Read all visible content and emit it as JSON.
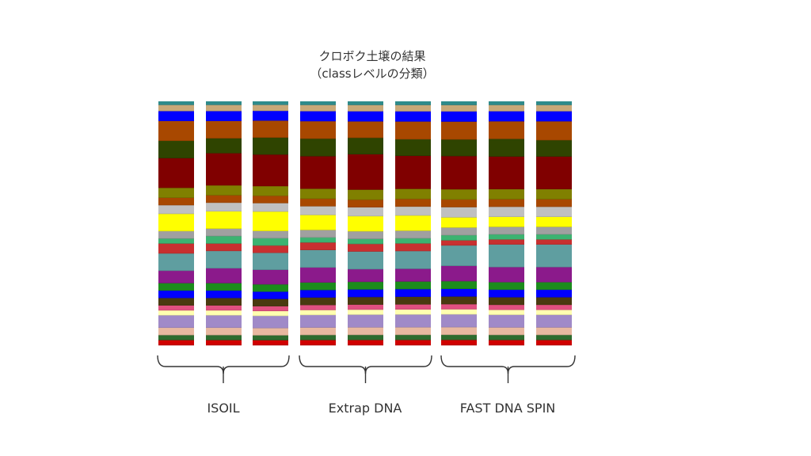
{
  "chart_data": {
    "type": "bar",
    "subtype": "stacked-100-percent",
    "title_lines": [
      "クロボク土壌の結果",
      "（classレベルの分類）"
    ],
    "groups": [
      {
        "label": "ISOIL",
        "bars": 3
      },
      {
        "label": "Extrap DNA",
        "bars": 3
      },
      {
        "label": "FAST DNA SPIN",
        "bars": 3
      }
    ],
    "ylim": [
      0,
      100
    ],
    "series": [
      {
        "color": "#2E8B8B",
        "values": [
          1.5,
          1.5,
          1.5,
          1.5,
          1.5,
          1.5,
          1.5,
          1.5,
          1.5
        ]
      },
      {
        "color": "#C8A878",
        "values": [
          2.5,
          2.5,
          2.5,
          2.5,
          2.5,
          2.5,
          2.5,
          2.5,
          2.5
        ]
      },
      {
        "color": "#0000FF",
        "values": [
          4,
          4,
          4,
          4,
          4,
          4,
          4,
          4,
          4
        ]
      },
      {
        "color": "#A84800",
        "values": [
          8,
          7,
          7,
          7,
          6.5,
          7,
          7,
          7,
          7.5
        ]
      },
      {
        "color": "#2F4400",
        "values": [
          7,
          6,
          7,
          7,
          6.5,
          6.5,
          6.5,
          7,
          6.5
        ]
      },
      {
        "color": "#800000",
        "values": [
          12,
          13,
          13,
          13,
          14,
          13,
          13,
          13,
          13
        ]
      },
      {
        "color": "#808000",
        "values": [
          4,
          4,
          4,
          4,
          4,
          4,
          4,
          4,
          4
        ]
      },
      {
        "color": "#A84800",
        "values": [
          3,
          3,
          3,
          3,
          3,
          3,
          3,
          3,
          3
        ]
      },
      {
        "color": "#C0C0C0",
        "values": [
          3.5,
          3.5,
          3.5,
          3.5,
          3.5,
          3.5,
          4,
          4,
          4
        ]
      },
      {
        "color": "#FFFF00",
        "values": [
          7,
          7,
          8,
          6,
          6,
          6,
          4,
          4,
          4
        ]
      },
      {
        "color": "#A0A0A0",
        "values": [
          3,
          3,
          3,
          3,
          3,
          3,
          3,
          3,
          3
        ]
      },
      {
        "color": "#3CB371",
        "values": [
          2,
          3,
          3,
          2,
          2,
          2,
          2,
          2,
          2
        ]
      },
      {
        "color": "#C83030",
        "values": [
          4,
          3,
          3,
          3,
          3,
          3,
          2,
          2,
          2
        ]
      },
      {
        "color": "#5F9EA0",
        "values": [
          7,
          7,
          7,
          7,
          7,
          7,
          8,
          9,
          9
        ]
      },
      {
        "color": "#8B1A8B",
        "values": [
          5,
          6,
          6,
          6,
          5,
          5,
          6,
          6,
          6
        ]
      },
      {
        "color": "#1C8C1C",
        "values": [
          3,
          3,
          3,
          3,
          3,
          3,
          3,
          3,
          3
        ]
      },
      {
        "color": "#0000FF",
        "values": [
          3,
          3,
          3,
          3,
          3,
          3,
          3,
          3,
          3
        ]
      },
      {
        "color": "#4A3A10",
        "values": [
          3,
          3,
          3,
          3,
          3,
          3,
          3,
          3,
          3
        ]
      },
      {
        "color": "#E05080",
        "values": [
          2,
          2,
          2,
          2,
          2,
          2,
          2,
          2,
          2
        ]
      },
      {
        "color": "#FFFFB0",
        "values": [
          2,
          2,
          2,
          2,
          2,
          2,
          2,
          2,
          2
        ]
      },
      {
        "color": "#A08AC8",
        "values": [
          5,
          5,
          5,
          5,
          5,
          5,
          5,
          5,
          5
        ]
      },
      {
        "color": "#E8B8A0",
        "values": [
          3,
          3,
          3,
          3,
          3,
          3,
          3,
          3,
          3
        ]
      },
      {
        "color": "#2E6B2E",
        "values": [
          2,
          2,
          2,
          2,
          2,
          2,
          2,
          2,
          2
        ]
      },
      {
        "color": "#D00000",
        "values": [
          2,
          2,
          2,
          2,
          2,
          2,
          2,
          2,
          2
        ]
      }
    ]
  }
}
